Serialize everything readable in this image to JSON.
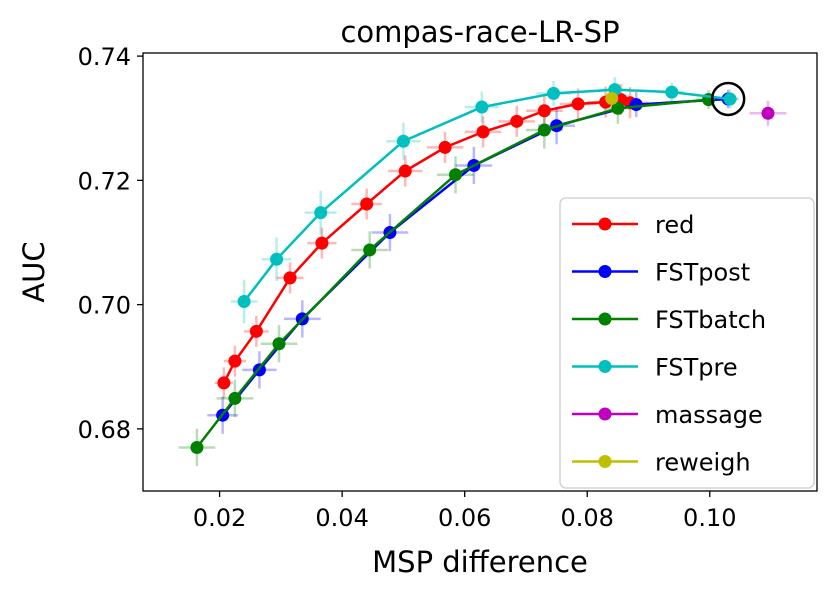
{
  "chart_data": {
    "type": "line",
    "title": "compas-race-LR-SP",
    "xlabel": "MSP difference",
    "ylabel": "AUC",
    "xlim": [
      0.0075,
      0.1175
    ],
    "ylim": [
      0.67,
      0.7405
    ],
    "xticks": [
      0.02,
      0.04,
      0.06,
      0.08,
      0.1
    ],
    "yticks": [
      0.68,
      0.7,
      0.72,
      0.74
    ],
    "xtick_labels": [
      "0.02",
      "0.04",
      "0.06",
      "0.08",
      "0.10"
    ],
    "ytick_labels": [
      "0.68",
      "0.70",
      "0.72",
      "0.74"
    ],
    "legend_position": "lower-right",
    "series": [
      {
        "name": "red",
        "color": "#ff0000",
        "x": [
          0.0207,
          0.0225,
          0.026,
          0.0315,
          0.0367,
          0.044,
          0.0503,
          0.0568,
          0.063,
          0.0685,
          0.073,
          0.0785,
          0.083,
          0.0855,
          0.087
        ],
        "y": [
          0.6874,
          0.6909,
          0.6957,
          0.7043,
          0.7099,
          0.7162,
          0.7215,
          0.7253,
          0.7278,
          0.7295,
          0.7312,
          0.7323,
          0.7326,
          0.733,
          0.7325
        ],
        "xerr": [
          0.0015,
          0.0018,
          0.002,
          0.0022,
          0.0024,
          0.0025,
          0.0028,
          0.003,
          0.003,
          0.003,
          0.003,
          0.003,
          0.003,
          0.003,
          0.003
        ],
        "yerr": [
          0.0025,
          0.0025,
          0.0025,
          0.0025,
          0.0025,
          0.0025,
          0.0025,
          0.0025,
          0.0025,
          0.0025,
          0.0025,
          0.0025,
          0.0025,
          0.0025,
          0.0025
        ]
      },
      {
        "name": "FSTpost",
        "color": "#0000ff",
        "x": [
          0.0205,
          0.0265,
          0.0335,
          0.0478,
          0.0615,
          0.075,
          0.088,
          0.103
        ],
        "y": [
          0.6822,
          0.6895,
          0.6977,
          0.7116,
          0.7224,
          0.7288,
          0.7322,
          0.7331
        ],
        "xerr": [
          0.0025,
          0.0028,
          0.003,
          0.003,
          0.003,
          0.003,
          0.002,
          0.0015
        ],
        "yerr": [
          0.003,
          0.003,
          0.003,
          0.003,
          0.003,
          0.003,
          0.002,
          0.0015
        ]
      },
      {
        "name": "FSTbatch",
        "color": "#008000",
        "x": [
          0.0163,
          0.0225,
          0.0297,
          0.0445,
          0.0585,
          0.073,
          0.085,
          0.0998
        ],
        "y": [
          0.677,
          0.6849,
          0.6937,
          0.7088,
          0.7209,
          0.7281,
          0.7316,
          0.733
        ],
        "xerr": [
          0.003,
          0.003,
          0.003,
          0.003,
          0.003,
          0.003,
          0.0025,
          0.002
        ],
        "yerr": [
          0.003,
          0.003,
          0.003,
          0.003,
          0.003,
          0.003,
          0.0025,
          0.0015
        ]
      },
      {
        "name": "FSTpre",
        "color": "#00bfbf",
        "x": [
          0.024,
          0.0293,
          0.0365,
          0.05,
          0.0628,
          0.0745,
          0.0845,
          0.0938,
          0.1033
        ],
        "y": [
          0.7005,
          0.7073,
          0.7148,
          0.7263,
          0.7318,
          0.734,
          0.7346,
          0.7342,
          0.7331
        ],
        "xerr": [
          0.0022,
          0.0024,
          0.0026,
          0.0028,
          0.0028,
          0.0028,
          0.0025,
          0.002,
          0.0015
        ],
        "yerr": [
          0.0035,
          0.0035,
          0.0035,
          0.003,
          0.0025,
          0.002,
          0.002,
          0.0015,
          0.0015
        ]
      },
      {
        "name": "massage",
        "color": "#bf00bf",
        "x": [
          0.1095
        ],
        "y": [
          0.7308
        ],
        "xerr": [
          0.003
        ],
        "yerr": [
          0.002
        ]
      },
      {
        "name": "reweigh",
        "color": "#bfbf00",
        "x": [
          0.084
        ],
        "y": [
          0.7332
        ],
        "xerr": [
          0.0015
        ],
        "yerr": [
          0.0015
        ]
      }
    ],
    "annotation": {
      "type": "circle-marker",
      "x": 0.103,
      "y": 0.7331
    }
  }
}
